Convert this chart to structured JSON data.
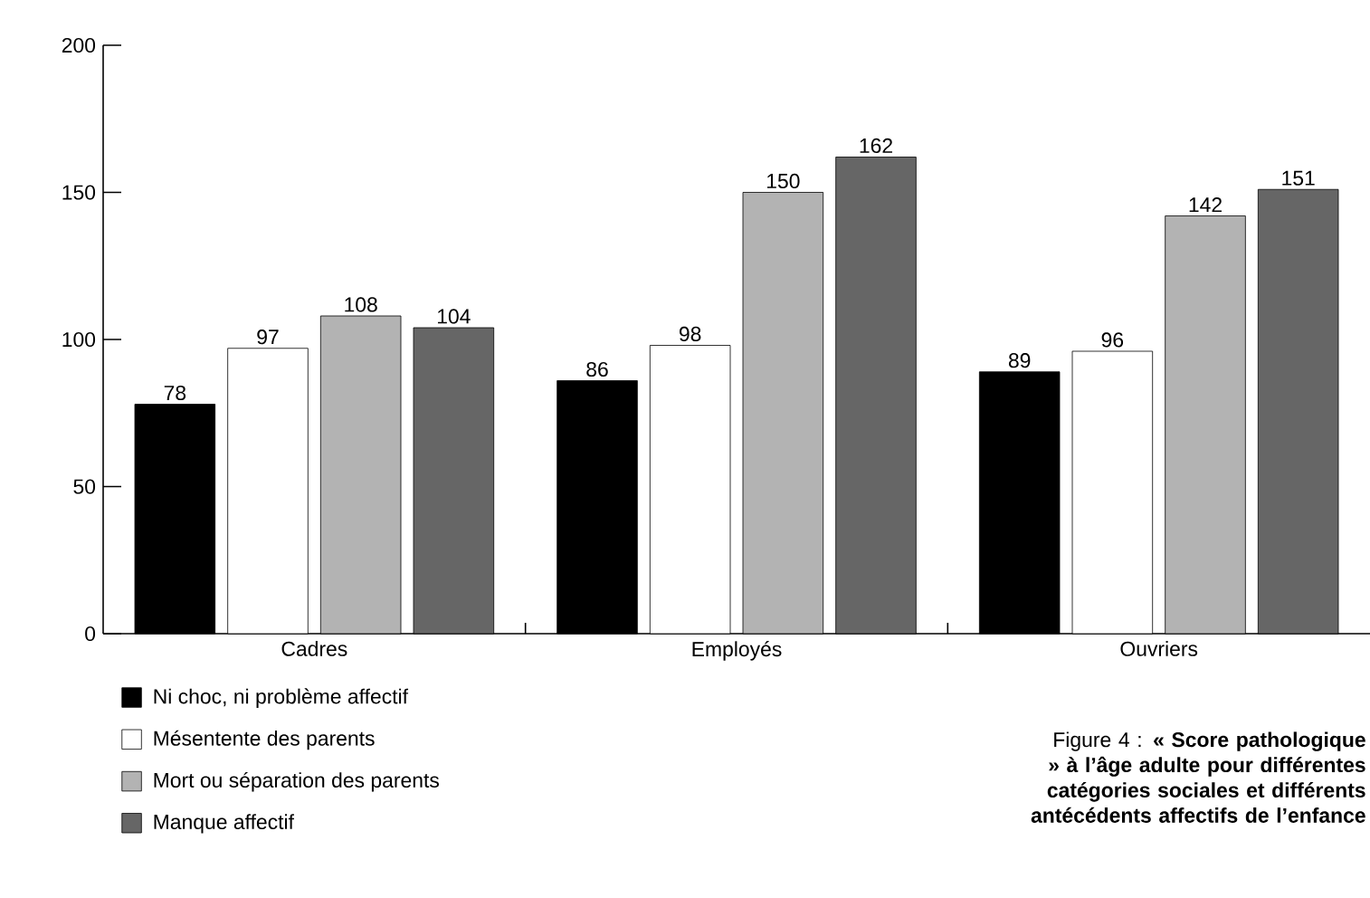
{
  "chart_data": {
    "type": "bar",
    "title": "Figure 4 : **« Score pathologique » à l’âge adulte pour différentes catégories sociales et différents antécédents affectifs de l’enfance**",
    "categories": [
      "Cadres",
      "Employés",
      "Ouvriers"
    ],
    "series": [
      {
        "name": "Ni choc, ni problème affectif",
        "color": "#000000",
        "values": [
          78,
          86,
          89
        ]
      },
      {
        "name": "Mésentente des parents",
        "color": "#ffffff",
        "values": [
          97,
          98,
          96
        ]
      },
      {
        "name": "Mort ou séparation des parents",
        "color": "#b3b3b3",
        "values": [
          108,
          150,
          142
        ]
      },
      {
        "name": "Manque affectif",
        "color": "#666666",
        "values": [
          104,
          162,
          151
        ]
      }
    ],
    "ylim": [
      0,
      200
    ],
    "yticks": [
      0,
      50,
      100,
      150,
      200
    ],
    "data_labels": true,
    "legend": "bottom left",
    "grid": false
  }
}
